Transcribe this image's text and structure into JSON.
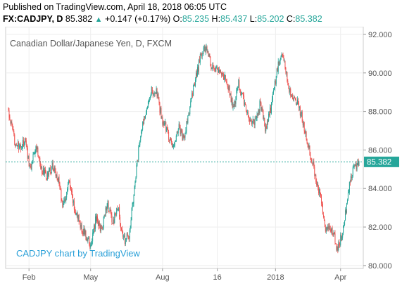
{
  "header": {
    "published": "Published on TradingView.com, April 18, 2018 06:05 UTC",
    "symbol": "FX:CADJPY, D",
    "last": "85.382",
    "change": "+0.147 (+0.17%)",
    "o_label": "O:",
    "o": "85.235",
    "h_label": "H:",
    "h": "85.437",
    "l_label": "L:",
    "l": "85.202",
    "c_label": "C:",
    "c": "85.382"
  },
  "watermark": "CADJPY chart by TradingView",
  "colors": {
    "up": "#26a69a",
    "down": "#ef5350",
    "price_line": "#26a69a",
    "watermark": "#2aa0d8"
  },
  "chart_data": {
    "type": "line",
    "title": "Canadian Dollar/Japanese Yen, D, FXCM",
    "xlabel": "",
    "ylabel": "",
    "ylim": [
      79.85,
      92.4
    ],
    "y_ticks": [
      "92.000",
      "90.000",
      "88.000",
      "86.000",
      "84.000",
      "82.000",
      "80.000"
    ],
    "y_tick_values": [
      92,
      90,
      88,
      86,
      84,
      82,
      80
    ],
    "x_ticks": [
      "Feb",
      "May",
      "Aug",
      "16",
      "2018",
      "Apr"
    ],
    "x_tick_index": [
      30,
      120,
      225,
      305,
      390,
      485
    ],
    "last_price_label": "85.382",
    "last_price": 85.382,
    "series": [
      {
        "values_closing_path": [
          [
            0,
            88.0
          ],
          [
            8,
            86.6
          ],
          [
            16,
            86.0
          ],
          [
            24,
            86.5
          ],
          [
            32,
            85.0
          ],
          [
            40,
            86.4
          ],
          [
            48,
            85.0
          ],
          [
            56,
            84.6
          ],
          [
            64,
            85.2
          ],
          [
            72,
            84.6
          ],
          [
            80,
            83.0
          ],
          [
            88,
            84.3
          ],
          [
            96,
            83.0
          ],
          [
            104,
            82.2
          ],
          [
            112,
            81.6
          ],
          [
            120,
            81.0
          ],
          [
            128,
            82.5
          ],
          [
            136,
            81.8
          ],
          [
            144,
            83.3
          ],
          [
            152,
            82.2
          ],
          [
            160,
            83.0
          ],
          [
            168,
            81.3
          ],
          [
            176,
            81.5
          ],
          [
            184,
            84.0
          ],
          [
            192,
            86.6
          ],
          [
            200,
            88.0
          ],
          [
            208,
            89.1
          ],
          [
            216,
            89.0
          ],
          [
            224,
            87.6
          ],
          [
            232,
            87.0
          ],
          [
            240,
            86.0
          ],
          [
            248,
            87.3
          ],
          [
            256,
            86.5
          ],
          [
            264,
            88.0
          ],
          [
            272,
            89.4
          ],
          [
            280,
            90.8
          ],
          [
            288,
            91.4
          ],
          [
            296,
            90.4
          ],
          [
            304,
            90.2
          ],
          [
            312,
            89.9
          ],
          [
            320,
            89.5
          ],
          [
            328,
            88.1
          ],
          [
            336,
            89.4
          ],
          [
            344,
            88.5
          ],
          [
            352,
            87.4
          ],
          [
            360,
            87.5
          ],
          [
            368,
            88.4
          ],
          [
            376,
            87.0
          ],
          [
            384,
            88.3
          ],
          [
            392,
            90.1
          ],
          [
            400,
            91.1
          ],
          [
            408,
            89.4
          ],
          [
            416,
            88.6
          ],
          [
            424,
            88.3
          ],
          [
            432,
            87.2
          ],
          [
            440,
            85.9
          ],
          [
            448,
            84.7
          ],
          [
            456,
            83.5
          ],
          [
            464,
            81.8
          ],
          [
            472,
            82.0
          ],
          [
            480,
            80.9
          ],
          [
            488,
            81.6
          ],
          [
            496,
            83.8
          ],
          [
            504,
            85.1
          ],
          [
            512,
            85.38
          ]
        ]
      }
    ]
  }
}
